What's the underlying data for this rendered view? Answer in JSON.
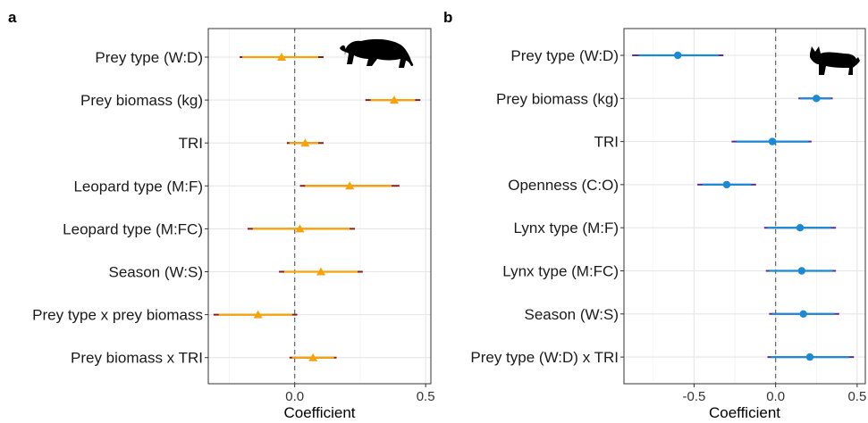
{
  "chart_data": [
    {
      "panel_letter": "a",
      "type": "forest",
      "xlabel": "Coefficient",
      "xlim": [
        -0.33,
        0.52
      ],
      "xticks": [
        0.0,
        0.5
      ],
      "xtick_labels": [
        "0.0",
        "0.5"
      ],
      "reference_line": 0,
      "grid": true,
      "marker": "triangle",
      "color": "#f5a30a",
      "outer_color": "#8b1a1a",
      "icon": "leopard-silhouette-icon",
      "terms": [
        {
          "label": "Prey type (W:D)",
          "estimate": -0.05,
          "inner": [
            -0.2,
            0.09
          ],
          "outer": [
            -0.21,
            0.11
          ]
        },
        {
          "label": "Prey biomass (kg)",
          "estimate": 0.38,
          "inner": [
            0.29,
            0.46
          ],
          "outer": [
            0.27,
            0.48
          ]
        },
        {
          "label": "TRI",
          "estimate": 0.04,
          "inner": [
            -0.02,
            0.09
          ],
          "outer": [
            -0.03,
            0.11
          ]
        },
        {
          "label": "Leopard type (M:F)",
          "estimate": 0.21,
          "inner": [
            0.04,
            0.37
          ],
          "outer": [
            0.02,
            0.4
          ]
        },
        {
          "label": "Leopard type (M:FC)",
          "estimate": 0.02,
          "inner": [
            -0.16,
            0.21
          ],
          "outer": [
            -0.18,
            0.23
          ]
        },
        {
          "label": "Season (W:S)",
          "estimate": 0.1,
          "inner": [
            -0.04,
            0.24
          ],
          "outer": [
            -0.06,
            0.26
          ]
        },
        {
          "label": "Prey type x prey biomass",
          "estimate": -0.14,
          "inner": [
            -0.29,
            -0.01
          ],
          "outer": [
            -0.31,
            0.01
          ]
        },
        {
          "label": "Prey biomass x TRI",
          "estimate": 0.07,
          "inner": [
            -0.01,
            0.15
          ],
          "outer": [
            -0.02,
            0.16
          ]
        }
      ]
    },
    {
      "panel_letter": "b",
      "type": "forest",
      "xlabel": "Coefficient",
      "xlim": [
        -0.93,
        0.55
      ],
      "xticks": [
        -0.5,
        0.0,
        0.5
      ],
      "xtick_labels": [
        "-0.5",
        "0.0",
        "0.5"
      ],
      "reference_line": 0,
      "grid": true,
      "marker": "circle",
      "color": "#1b8ad2",
      "outer_color": "#5a2d91",
      "icon": "lynx-silhouette-icon",
      "terms": [
        {
          "label": "Prey type (W:D)",
          "estimate": -0.6,
          "inner": [
            -0.84,
            -0.35
          ],
          "outer": [
            -0.88,
            -0.32
          ]
        },
        {
          "label": "Prey biomass (kg)",
          "estimate": 0.25,
          "inner": [
            0.15,
            0.34
          ],
          "outer": [
            0.14,
            0.35
          ]
        },
        {
          "label": "TRI",
          "estimate": -0.02,
          "inner": [
            -0.24,
            0.2
          ],
          "outer": [
            -0.27,
            0.22
          ]
        },
        {
          "label": "Openness (C:O)",
          "estimate": -0.3,
          "inner": [
            -0.45,
            -0.15
          ],
          "outer": [
            -0.48,
            -0.12
          ]
        },
        {
          "label": "Lynx type (M:F)",
          "estimate": 0.15,
          "inner": [
            -0.05,
            0.34
          ],
          "outer": [
            -0.07,
            0.37
          ]
        },
        {
          "label": "Lynx type (M:FC)",
          "estimate": 0.16,
          "inner": [
            -0.04,
            0.35
          ],
          "outer": [
            -0.06,
            0.37
          ]
        },
        {
          "label": "Season (W:S)",
          "estimate": 0.17,
          "inner": [
            -0.02,
            0.36
          ],
          "outer": [
            -0.04,
            0.39
          ]
        },
        {
          "label": "Prey type (W:D) x TRI",
          "estimate": 0.21,
          "inner": [
            -0.03,
            0.45
          ],
          "outer": [
            -0.05,
            0.48
          ]
        }
      ]
    }
  ]
}
